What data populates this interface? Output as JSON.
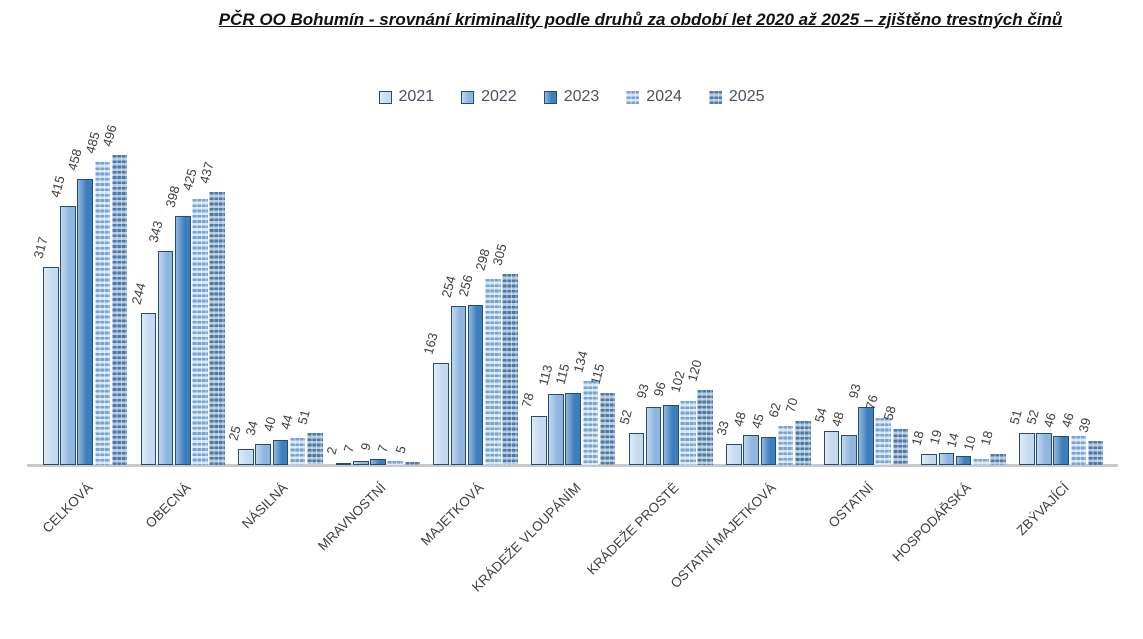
{
  "title": "PČR OO Bohumín - srovnání kriminality podle druhů za období let 2020 až 2025 – zjištěno trestných činů",
  "chart_data": {
    "type": "bar",
    "title": "PČR OO Bohumín - srovnání kriminality podle druhů za období let 2020 až 2025 – zjištěno trestných činů",
    "categories": [
      "CELKOVÁ",
      "OBECNÁ",
      "NÁSILNÁ",
      "MRAVNOSTNÍ",
      "MAJETKOVÁ",
      "KRÁDEŽE VLOUPÁNÍM",
      "KRÁDEŽE PROSTÉ",
      "OSTATNÍ MAJETKOVÁ",
      "OSTATNÍ",
      "HOSPODÁŘSKÁ",
      "ZBÝVAJÍCÍ"
    ],
    "series": [
      {
        "name": "2021",
        "style": "solid",
        "fill": "#C5DAEF",
        "border": "#1F4E79",
        "values": [
          317,
          244,
          25,
          2,
          163,
          78,
          52,
          33,
          54,
          18,
          51
        ]
      },
      {
        "name": "2022",
        "style": "solid",
        "fill": "#8FB6E0",
        "border": "#1F4E79",
        "values": [
          415,
          343,
          34,
          7,
          254,
          113,
          93,
          48,
          48,
          19,
          52
        ]
      },
      {
        "name": "2023",
        "style": "solid",
        "fill": "#3D7EBE",
        "border": "#1F4E79",
        "values": [
          458,
          398,
          40,
          9,
          256,
          115,
          96,
          45,
          93,
          14,
          46
        ]
      },
      {
        "name": "2024",
        "style": "hstripe",
        "stripe": "#74A4D4",
        "bg": "#D9E5F2",
        "values": [
          485,
          425,
          44,
          7,
          298,
          134,
          102,
          62,
          76,
          10,
          46
        ]
      },
      {
        "name": "2025",
        "style": "hstripe",
        "stripe": "#4C79A6",
        "bg": "#B3C9E0",
        "values": [
          496,
          437,
          51,
          5,
          305,
          115,
          120,
          70,
          58,
          18,
          39
        ]
      }
    ],
    "ylim": [
      0,
      500
    ],
    "grid": false,
    "legend_position": "top",
    "data_labels": true,
    "data_label_rotation_deg": -75,
    "category_label_rotation_deg": -45,
    "axis_line_color": "#C9C9C9",
    "label_color": "#3F3F3F",
    "legend_text_color": "#4A5160"
  }
}
